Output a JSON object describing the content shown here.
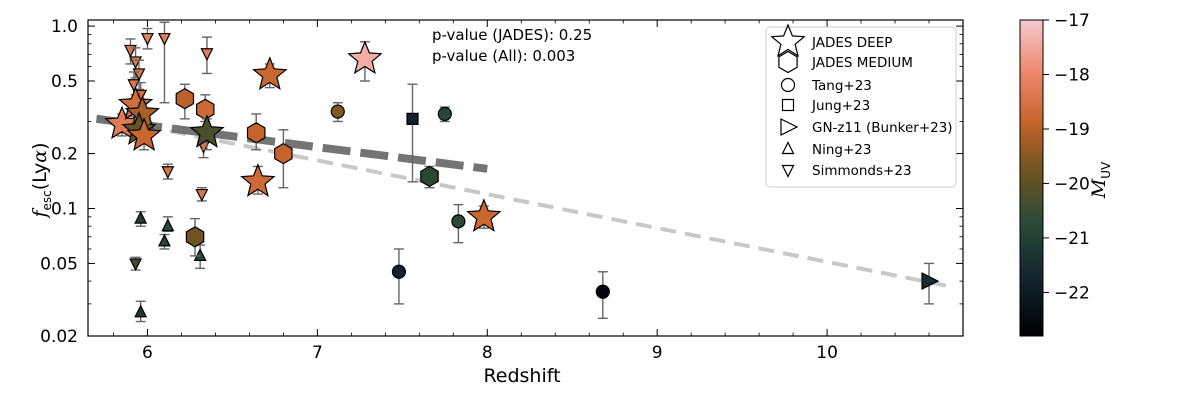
{
  "chart_data": {
    "type": "scatter",
    "xlabel": "Redshift",
    "ylabel": "f_esc(Lyα)",
    "xlim": [
      5.65,
      10.8
    ],
    "ylim": [
      0.02,
      1.08
    ],
    "yscale": "log",
    "xticks": [
      "6",
      "7",
      "8",
      "9",
      "10"
    ],
    "yticks": [
      "0.02",
      "0.05",
      "0.1",
      "0.2",
      "0.5",
      "1.0"
    ],
    "annotations": [
      "p-value (JADES): 0.25",
      "p-value (All): 0.003"
    ],
    "legend_position": "top-right",
    "legend": [
      {
        "label": "JADES DEEP",
        "marker": "star"
      },
      {
        "label": "JADES MEDIUM",
        "marker": "hexagon"
      },
      {
        "label": "Tang+23",
        "marker": "circle"
      },
      {
        "label": "Jung+23",
        "marker": "square"
      },
      {
        "label": "GN-z11 (Bunker+23)",
        "marker": "triangle-right"
      },
      {
        "label": "Ning+23",
        "marker": "triangle-up"
      },
      {
        "label": "Simmonds+23",
        "marker": "triangle-down"
      }
    ],
    "colorbar": {
      "label": "M_UV",
      "range": [
        -22.8,
        -17.0
      ],
      "ticks": [
        "-17",
        "-18",
        "-19",
        "-20",
        "-21",
        "-22"
      ]
    },
    "fits": [
      {
        "x": [
          5.7,
          8.0
        ],
        "y": [
          0.31,
          0.165
        ],
        "color": "#666666"
      },
      {
        "x": [
          5.7,
          10.75
        ],
        "y": [
          0.32,
          0.037
        ],
        "color": "#c8c8c8"
      }
    ],
    "series": [
      {
        "name": "JADES DEEP",
        "marker": "star",
        "points": [
          {
            "x": 5.85,
            "y": 0.29,
            "yerr": [
              0.25,
              0.33
            ],
            "muv": -18.3
          },
          {
            "x": 5.93,
            "y": 0.37,
            "yerr": [
              0.32,
              0.42
            ],
            "muv": -18.6
          },
          {
            "x": 5.97,
            "y": 0.33,
            "yerr": [
              0.28,
              0.38
            ],
            "muv": -19.2
          },
          {
            "x": 5.95,
            "y": 0.27,
            "yerr": [
              0.23,
              0.31
            ],
            "muv": -19.9
          },
          {
            "x": 5.98,
            "y": 0.25,
            "yerr": [
              0.21,
              0.29
            ],
            "muv": -18.8
          },
          {
            "x": 6.35,
            "y": 0.26,
            "yerr": [
              0.21,
              0.31
            ],
            "muv": -20.3
          },
          {
            "x": 6.65,
            "y": 0.14,
            "yerr": [
              0.12,
              0.17
            ],
            "muv": -18.7
          },
          {
            "x": 6.72,
            "y": 0.54,
            "yerr": [
              0.46,
              0.62
            ],
            "muv": -18.8
          },
          {
            "x": 7.28,
            "y": 0.66,
            "yerr": [
              0.5,
              0.82
            ],
            "muv": -17.4
          },
          {
            "x": 7.98,
            "y": 0.09,
            "yerr": [
              0.078,
              0.103
            ],
            "muv": -18.8
          }
        ]
      },
      {
        "name": "JADES MEDIUM",
        "marker": "hexagon",
        "points": [
          {
            "x": 6.22,
            "y": 0.4,
            "yerr": [
              0.31,
              0.48
            ],
            "muv": -19.0
          },
          {
            "x": 6.34,
            "y": 0.35,
            "yerr": [
              0.3,
              0.42
            ],
            "muv": -18.7
          },
          {
            "x": 6.64,
            "y": 0.26,
            "yerr": [
              0.21,
              0.33
            ],
            "muv": -18.9
          },
          {
            "x": 6.8,
            "y": 0.2,
            "yerr": [
              0.13,
              0.27
            ],
            "muv": -18.9
          },
          {
            "x": 6.28,
            "y": 0.07,
            "yerr": [
              0.055,
              0.088
            ],
            "muv": -19.8
          },
          {
            "x": 7.66,
            "y": 0.15,
            "yerr": [
              0.13,
              0.17
            ],
            "muv": -20.8
          }
        ]
      },
      {
        "name": "Tang+23",
        "marker": "circle",
        "points": [
          {
            "x": 7.12,
            "y": 0.34,
            "yerr": [
              0.3,
              0.38
            ],
            "muv": -19.6
          },
          {
            "x": 7.75,
            "y": 0.33,
            "yerr": [
              0.3,
              0.36
            ],
            "muv": -20.8
          },
          {
            "x": 7.83,
            "y": 0.085,
            "yerr": [
              0.065,
              0.105
            ],
            "muv": -20.8
          },
          {
            "x": 7.48,
            "y": 0.045,
            "yerr": [
              0.03,
              0.06
            ],
            "muv": -21.8
          },
          {
            "x": 8.68,
            "y": 0.035,
            "yerr": [
              0.025,
              0.045
            ],
            "muv": -22.6
          }
        ]
      },
      {
        "name": "Jung+23",
        "marker": "square",
        "points": [
          {
            "x": 7.56,
            "y": 0.31,
            "yerr": [
              0.14,
              0.48
            ],
            "muv": -21.8
          }
        ]
      },
      {
        "name": "GN-z11 (Bunker+23)",
        "marker": "triangle-right",
        "points": [
          {
            "x": 10.6,
            "y": 0.04,
            "yerr": [
              0.03,
              0.05
            ],
            "muv": -21.5
          }
        ]
      },
      {
        "name": "Ning+23",
        "marker": "triangle-up",
        "points": [
          {
            "x": 5.96,
            "y": 0.088,
            "yerr": [
              0.08,
              0.096
            ],
            "muv": -21.0
          },
          {
            "x": 6.12,
            "y": 0.08,
            "yerr": [
              0.075,
              0.09
            ],
            "muv": -20.7
          },
          {
            "x": 6.1,
            "y": 0.066,
            "yerr": [
              0.06,
              0.072
            ],
            "muv": -20.9
          },
          {
            "x": 6.31,
            "y": 0.055,
            "yerr": [
              0.047,
              0.063
            ],
            "muv": -20.8
          },
          {
            "x": 5.96,
            "y": 0.027,
            "yerr": [
              0.024,
              0.031
            ],
            "muv": -21.2
          }
        ]
      },
      {
        "name": "Simmonds+23",
        "marker": "triangle-down",
        "points": [
          {
            "x": 5.9,
            "y": 0.74,
            "yerr": [
              0.62,
              0.85
            ],
            "muv": -18.4
          },
          {
            "x": 5.93,
            "y": 0.64,
            "yerr": [
              0.52,
              0.76
            ],
            "muv": -18.3
          },
          {
            "x": 5.95,
            "y": 0.55,
            "yerr": [
              0.45,
              0.65
            ],
            "muv": -18.5
          },
          {
            "x": 5.92,
            "y": 0.48,
            "yerr": [
              0.4,
              0.56
            ],
            "muv": -18.4
          },
          {
            "x": 5.96,
            "y": 0.42,
            "yerr": [
              0.35,
              0.49
            ],
            "muv": -18.6
          },
          {
            "x": 6.0,
            "y": 0.86,
            "yerr": [
              0.75,
              0.97
            ],
            "muv": -18.2
          },
          {
            "x": 6.1,
            "y": 0.86,
            "yerr": [
              0.38,
              1.05
            ],
            "muv": -18.2
          },
          {
            "x": 6.35,
            "y": 0.71,
            "yerr": [
              0.55,
              0.87
            ],
            "muv": -18.3
          },
          {
            "x": 5.95,
            "y": 0.3,
            "yerr": [
              0.26,
              0.34
            ],
            "muv": -18.6
          },
          {
            "x": 6.12,
            "y": 0.16,
            "yerr": [
              0.145,
              0.175
            ],
            "muv": -18.5
          },
          {
            "x": 6.32,
            "y": 0.12,
            "yerr": [
              0.11,
              0.13
            ],
            "muv": -18.4
          },
          {
            "x": 5.93,
            "y": 0.05,
            "yerr": [
              0.046,
              0.054
            ],
            "muv": -20.4
          },
          {
            "x": 6.33,
            "y": 0.22,
            "yerr": [
              0.19,
              0.25
            ],
            "muv": -18.5
          }
        ]
      }
    ]
  }
}
